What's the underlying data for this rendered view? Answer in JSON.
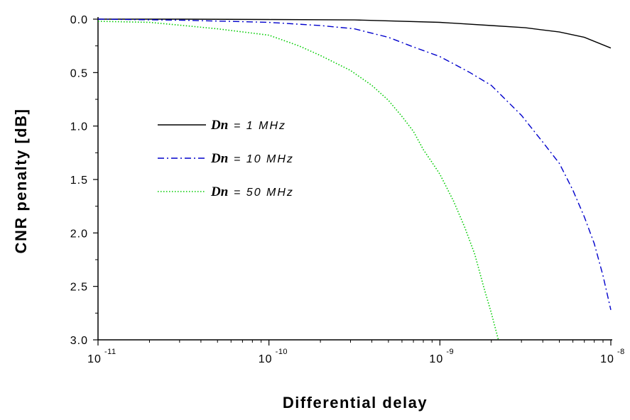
{
  "chart_data": {
    "type": "line",
    "title": "",
    "xlabel": "Differential delay",
    "ylabel": "CNR penalty [dB]",
    "x_scale": "log",
    "xlim": [
      1e-11,
      1e-08
    ],
    "ylim": [
      3.0,
      0.0
    ],
    "y_inverted": true,
    "grid": false,
    "legend_position": "center-left",
    "x_ticks": [
      {
        "base": "10",
        "exp": "-11",
        "value": 1e-11
      },
      {
        "base": "10",
        "exp": "-10",
        "value": 1e-10
      },
      {
        "base": "10",
        "exp": "-9",
        "value": 1e-09
      },
      {
        "base": "10",
        "exp": "-8",
        "value": 1e-08
      }
    ],
    "y_ticks": [
      "0.0",
      "0.5",
      "1.0",
      "1.5",
      "2.0",
      "2.5",
      "3.0"
    ],
    "series": [
      {
        "name": "Dn= 1 MHz",
        "legend_symbol": "Dn",
        "legend_value": "= 1 MHz",
        "color": "#000000",
        "style": "solid",
        "x": [
          1e-11,
          3.16e-11,
          1e-10,
          3.16e-10,
          1e-09,
          2e-09,
          3.16e-09,
          5e-09,
          7e-09,
          1e-08
        ],
        "y": [
          0.0,
          0.0,
          0.003,
          0.007,
          0.03,
          0.06,
          0.08,
          0.12,
          0.17,
          0.27
        ]
      },
      {
        "name": "Dn= 10 MHz",
        "legend_symbol": "Dn",
        "legend_value": "= 10 MHz",
        "color": "#0000cc",
        "style": "dashdot",
        "x": [
          1e-11,
          3.16e-11,
          1e-10,
          2e-10,
          3.16e-10,
          5e-10,
          7e-10,
          1e-09,
          1.5e-09,
          2e-09,
          3e-09,
          4e-09,
          5e-09,
          6e-09,
          7e-09,
          8e-09,
          9e-09,
          1e-08
        ],
        "y": [
          0.0,
          0.01,
          0.03,
          0.06,
          0.09,
          0.17,
          0.26,
          0.35,
          0.5,
          0.62,
          0.9,
          1.15,
          1.35,
          1.6,
          1.85,
          2.1,
          2.4,
          2.72
        ]
      },
      {
        "name": "Dn= 50 MHz",
        "legend_symbol": "Dn",
        "legend_value": "= 50 MHz",
        "color": "#00cc00",
        "style": "dotted",
        "x": [
          1e-11,
          2e-11,
          3.16e-11,
          5e-11,
          1e-10,
          1.5e-10,
          2e-10,
          3e-10,
          4e-10,
          5e-10,
          6e-10,
          7e-10,
          8e-10,
          9e-10,
          1e-09,
          1.2e-09,
          1.4e-09,
          1.6e-09,
          1.8e-09,
          2e-09,
          2.2e-09
        ],
        "y": [
          0.02,
          0.03,
          0.06,
          0.09,
          0.15,
          0.25,
          0.34,
          0.48,
          0.62,
          0.76,
          0.91,
          1.05,
          1.22,
          1.34,
          1.45,
          1.7,
          1.95,
          2.2,
          2.5,
          2.75,
          3.0
        ]
      }
    ]
  }
}
